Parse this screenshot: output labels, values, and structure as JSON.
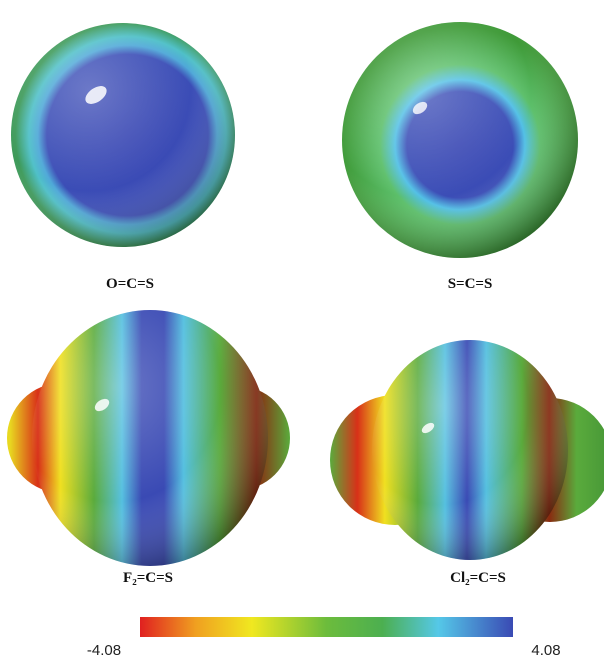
{
  "molecules": [
    {
      "label": "O=C=S"
    },
    {
      "label": "S=C=S"
    },
    {
      "label": "F₂=C=S"
    },
    {
      "label": "Cl₂=C=S"
    }
  ],
  "colorbar": {
    "min": -4.08,
    "max": 4.08
  }
}
